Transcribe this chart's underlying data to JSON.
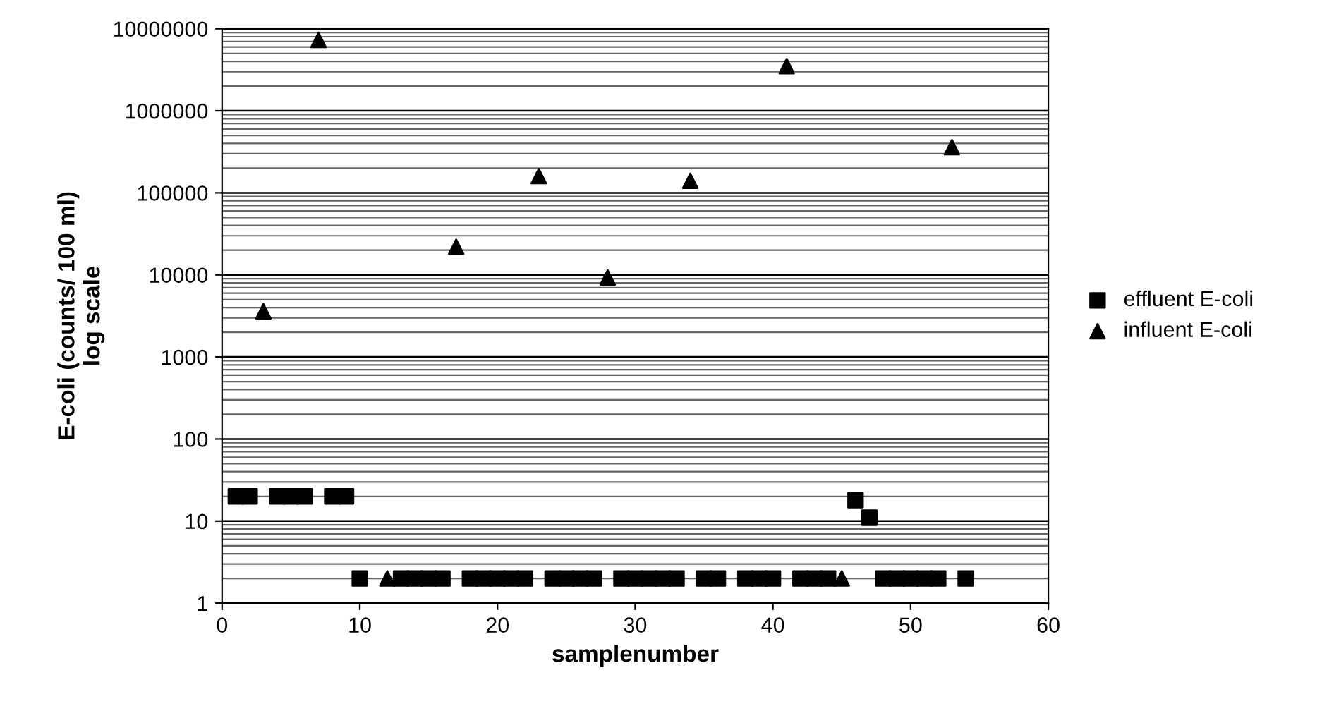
{
  "chart_data": {
    "type": "scatter",
    "xlabel": "samplenumber",
    "ylabel": "E-coli (counts/ 100 ml)\nlog scale",
    "log": "y",
    "grid": "y",
    "legend": "right",
    "xlim": [
      0,
      60
    ],
    "xticks": [
      0,
      10,
      20,
      30,
      40,
      50,
      60
    ],
    "ylim": [
      1,
      10000000
    ],
    "yticks": [
      1,
      10,
      100,
      1000,
      10000,
      100000,
      1000000,
      10000000
    ],
    "series": [
      {
        "name": "effluent E-coli",
        "color": "#000000",
        "marker": "square",
        "x": [
          1,
          2,
          4,
          5,
          6,
          8,
          9,
          10,
          13,
          14,
          15,
          16,
          18,
          19,
          20,
          21,
          22,
          24,
          25,
          26,
          27,
          29,
          30,
          31,
          32,
          33,
          35,
          36,
          38,
          39,
          40,
          42,
          43,
          44,
          46,
          47,
          48,
          49,
          50,
          51,
          52,
          54
        ],
        "values": [
          20,
          20,
          20,
          20,
          20,
          20,
          20,
          2,
          2,
          2,
          2,
          2,
          2,
          2,
          2,
          2,
          2,
          2,
          2,
          2,
          2,
          2,
          2,
          2,
          2,
          2,
          2,
          2,
          2,
          2,
          2,
          2,
          2,
          2,
          18,
          11,
          2,
          2,
          2,
          2,
          2,
          2
        ]
      },
      {
        "name": "influent E-coli",
        "color": "#000000",
        "marker": "triangle",
        "x": [
          3,
          7,
          12,
          17,
          23,
          28,
          34,
          41,
          45,
          53
        ],
        "values": [
          3600,
          7300000,
          2,
          22000,
          160000,
          9300,
          140000,
          3500000,
          2,
          360000
        ]
      }
    ]
  }
}
